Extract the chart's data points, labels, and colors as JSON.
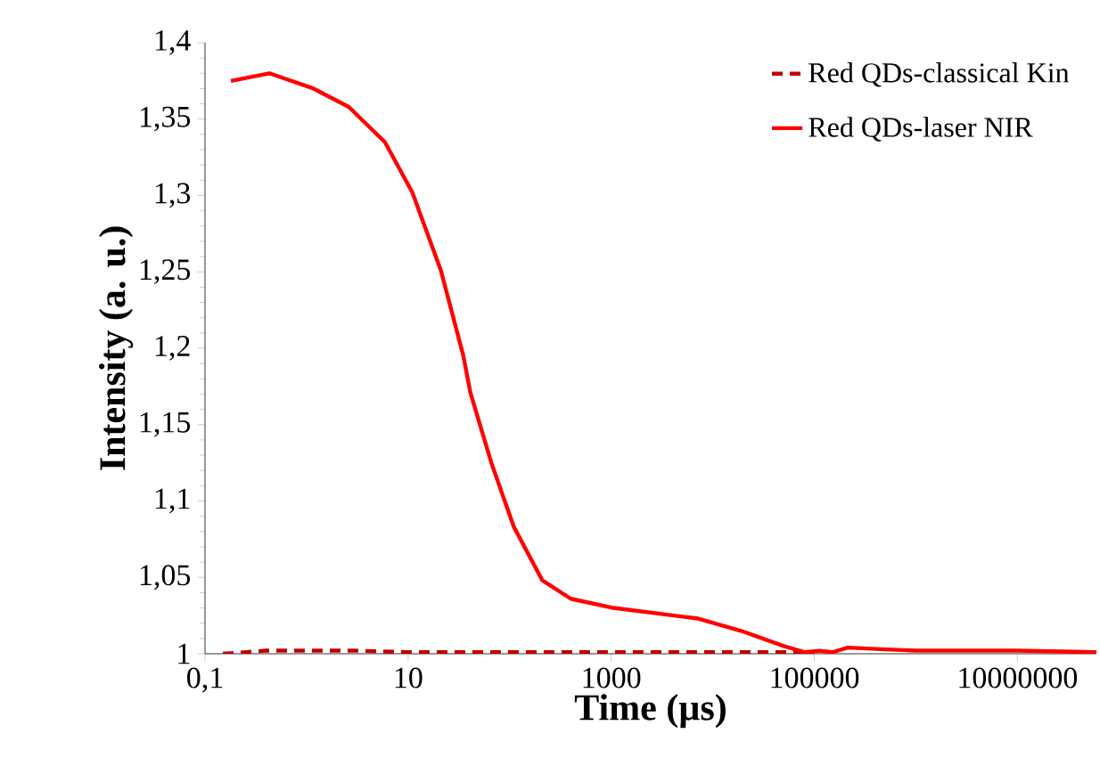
{
  "chart_data": {
    "type": "line",
    "xlabel": "Time (µs)",
    "ylabel": "Intensity (a. u.)",
    "log": "x",
    "xlim": [
      0.1,
      60000000
    ],
    "ylim": [
      1,
      1.4
    ],
    "xticks": [
      {
        "value": 0.1,
        "label": "0,1"
      },
      10,
      1000,
      100000,
      10000000
    ],
    "yticks": [
      1,
      {
        "value": 1.05,
        "label": "1,05"
      },
      {
        "value": 1.1,
        "label": "1,1"
      },
      {
        "value": 1.15,
        "label": "1,15"
      },
      {
        "value": 1.2,
        "label": "1,2"
      },
      {
        "value": 1.25,
        "label": "1,25"
      },
      {
        "value": 1.3,
        "label": "1,3"
      },
      {
        "value": 1.35,
        "label": "1,35"
      },
      {
        "value": 1.4,
        "label": "1,4"
      }
    ],
    "legend": "top right",
    "grid": false,
    "marker": "none",
    "series": [
      {
        "name": "Red QDs-classical Kin",
        "color": "#c00000",
        "line_style": "dashed",
        "x": [
          0.15,
          0.4,
          1,
          3,
          10,
          100,
          1000,
          10000,
          100000
        ],
        "values": [
          1.0,
          1.002,
          1.002,
          1.002,
          1.001,
          1.001,
          1.001,
          1.001,
          1.001
        ]
      },
      {
        "name": "Red QDs-laser NIR",
        "color": "#ff0000",
        "line_style": "solid",
        "x": [
          0.18,
          0.43,
          1.17,
          2.6,
          5.9,
          11,
          21,
          35,
          41,
          66,
          110,
          210,
          400,
          1050,
          7200,
          19000,
          50000,
          81000,
          112000,
          150000,
          214000,
          450000,
          1000000,
          10000000,
          60000000
        ],
        "values": [
          1.375,
          1.38,
          1.37,
          1.358,
          1.335,
          1.302,
          1.251,
          1.195,
          1.171,
          1.125,
          1.083,
          1.048,
          1.036,
          1.03,
          1.023,
          1.015,
          1.005,
          1.001,
          1.002,
          1.001,
          1.004,
          1.003,
          1.002,
          1.002,
          1.001
        ]
      }
    ]
  }
}
